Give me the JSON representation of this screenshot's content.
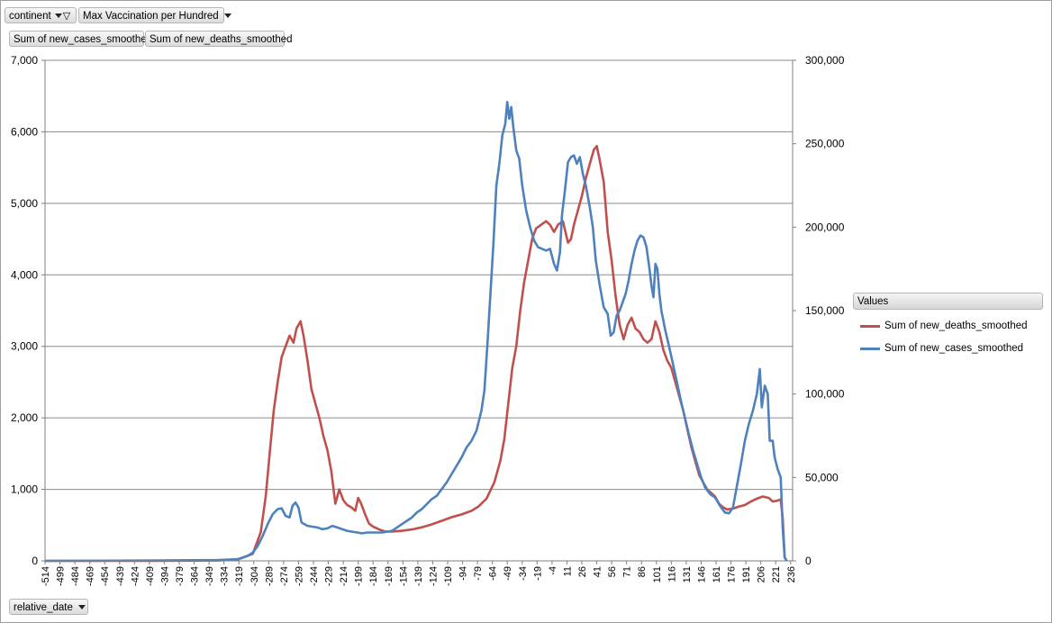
{
  "filters": {
    "continent_label": "continent",
    "vacc_label": "Max Vaccination per Hundred"
  },
  "value_fields": {
    "cases": "Sum of new_cases_smoothed",
    "deaths": "Sum of new_deaths_smoothed"
  },
  "axis_field": {
    "label": "relative_date"
  },
  "legend": {
    "title": "Values",
    "items": [
      {
        "label": "Sum of new_deaths_smoothed",
        "color": "#c0504d"
      },
      {
        "label": "Sum of new_cases_smoothed",
        "color": "#4f81bd"
      }
    ]
  },
  "chart_data": {
    "type": "line",
    "title": "",
    "xlabel": "relative_date",
    "ylabel_left": "",
    "ylabel_right": "",
    "xlim": [
      -514,
      238
    ],
    "ylim_left": [
      0,
      7000
    ],
    "ylim_right": [
      0,
      300000
    ],
    "y_ticks_left": [
      "0",
      "1,000",
      "2,000",
      "3,000",
      "4,000",
      "5,000",
      "6,000",
      "7,000"
    ],
    "y_ticks_right": [
      "0",
      "50,000",
      "100,000",
      "150,000",
      "200,000",
      "250,000",
      "300,000"
    ],
    "x_ticks": [
      "-514",
      "-499",
      "-484",
      "-469",
      "-454",
      "-439",
      "-424",
      "-409",
      "-394",
      "-379",
      "-364",
      "-349",
      "-334",
      "-319",
      "-304",
      "-289",
      "-274",
      "-259",
      "-244",
      "-229",
      "-214",
      "-199",
      "-184",
      "-169",
      "-154",
      "-139",
      "-124",
      "-109",
      "-94",
      "-79",
      "-64",
      "-49",
      "-34",
      "-19",
      "-4",
      "11",
      "26",
      "41",
      "56",
      "71",
      "86",
      "101",
      "116",
      "131",
      "146",
      "161",
      "176",
      "191",
      "206",
      "221",
      "236"
    ],
    "grid": "horizontal",
    "legend_position": "right",
    "series": [
      {
        "name": "Sum of new_deaths_smoothed",
        "axis": "left",
        "color": "#c0504d",
        "points": [
          [
            -514,
            0
          ],
          [
            -400,
            0
          ],
          [
            -340,
            5
          ],
          [
            -320,
            20
          ],
          [
            -305,
            100
          ],
          [
            -297,
            400
          ],
          [
            -292,
            900
          ],
          [
            -288,
            1500
          ],
          [
            -284,
            2100
          ],
          [
            -280,
            2500
          ],
          [
            -276,
            2850
          ],
          [
            -272,
            3000
          ],
          [
            -268,
            3150
          ],
          [
            -264,
            3050
          ],
          [
            -261,
            3250
          ],
          [
            -257,
            3350
          ],
          [
            -254,
            3150
          ],
          [
            -250,
            2800
          ],
          [
            -246,
            2400
          ],
          [
            -242,
            2200
          ],
          [
            -238,
            2000
          ],
          [
            -234,
            1750
          ],
          [
            -230,
            1550
          ],
          [
            -226,
            1250
          ],
          [
            -222,
            800
          ],
          [
            -218,
            1000
          ],
          [
            -214,
            850
          ],
          [
            -210,
            780
          ],
          [
            -206,
            750
          ],
          [
            -202,
            700
          ],
          [
            -199,
            880
          ],
          [
            -196,
            800
          ],
          [
            -192,
            650
          ],
          [
            -188,
            520
          ],
          [
            -184,
            480
          ],
          [
            -178,
            440
          ],
          [
            -172,
            410
          ],
          [
            -165,
            410
          ],
          [
            -155,
            420
          ],
          [
            -145,
            440
          ],
          [
            -135,
            470
          ],
          [
            -125,
            510
          ],
          [
            -115,
            560
          ],
          [
            -105,
            610
          ],
          [
            -95,
            650
          ],
          [
            -85,
            700
          ],
          [
            -78,
            760
          ],
          [
            -70,
            870
          ],
          [
            -62,
            1100
          ],
          [
            -56,
            1400
          ],
          [
            -52,
            1700
          ],
          [
            -48,
            2200
          ],
          [
            -44,
            2700
          ],
          [
            -40,
            3000
          ],
          [
            -36,
            3500
          ],
          [
            -32,
            3900
          ],
          [
            -28,
            4200
          ],
          [
            -24,
            4500
          ],
          [
            -20,
            4650
          ],
          [
            -15,
            4700
          ],
          [
            -10,
            4750
          ],
          [
            -6,
            4700
          ],
          [
            -2,
            4600
          ],
          [
            2,
            4700
          ],
          [
            7,
            4750
          ],
          [
            12,
            4450
          ],
          [
            15,
            4500
          ],
          [
            18,
            4700
          ],
          [
            22,
            4900
          ],
          [
            26,
            5100
          ],
          [
            30,
            5350
          ],
          [
            34,
            5550
          ],
          [
            38,
            5750
          ],
          [
            41,
            5800
          ],
          [
            44,
            5600
          ],
          [
            48,
            5300
          ],
          [
            52,
            4600
          ],
          [
            56,
            4200
          ],
          [
            60,
            3700
          ],
          [
            64,
            3300
          ],
          [
            68,
            3100
          ],
          [
            72,
            3300
          ],
          [
            76,
            3400
          ],
          [
            80,
            3250
          ],
          [
            84,
            3200
          ],
          [
            88,
            3100
          ],
          [
            92,
            3050
          ],
          [
            96,
            3100
          ],
          [
            100,
            3350
          ],
          [
            104,
            3200
          ],
          [
            108,
            2950
          ],
          [
            112,
            2800
          ],
          [
            116,
            2700
          ],
          [
            120,
            2500
          ],
          [
            124,
            2300
          ],
          [
            128,
            2100
          ],
          [
            132,
            1850
          ],
          [
            136,
            1600
          ],
          [
            140,
            1400
          ],
          [
            144,
            1200
          ],
          [
            148,
            1100
          ],
          [
            152,
            1000
          ],
          [
            156,
            950
          ],
          [
            160,
            900
          ],
          [
            164,
            800
          ],
          [
            168,
            750
          ],
          [
            172,
            720
          ],
          [
            178,
            730
          ],
          [
            184,
            760
          ],
          [
            190,
            780
          ],
          [
            196,
            830
          ],
          [
            202,
            870
          ],
          [
            208,
            900
          ],
          [
            214,
            880
          ],
          [
            218,
            830
          ],
          [
            222,
            840
          ],
          [
            226,
            860
          ],
          [
            228,
            600
          ],
          [
            230,
            50
          ],
          [
            232,
            0
          ]
        ]
      },
      {
        "name": "Sum of new_cases_smoothed",
        "axis": "right",
        "color": "#4f81bd",
        "points": [
          [
            -514,
            0
          ],
          [
            -400,
            200
          ],
          [
            -340,
            500
          ],
          [
            -320,
            1000
          ],
          [
            -310,
            3000
          ],
          [
            -305,
            5000
          ],
          [
            -300,
            9000
          ],
          [
            -295,
            15000
          ],
          [
            -290,
            22000
          ],
          [
            -285,
            28000
          ],
          [
            -280,
            31000
          ],
          [
            -276,
            31500
          ],
          [
            -272,
            27000
          ],
          [
            -268,
            26000
          ],
          [
            -265,
            33000
          ],
          [
            -262,
            35000
          ],
          [
            -259,
            32000
          ],
          [
            -256,
            23000
          ],
          [
            -250,
            21000
          ],
          [
            -245,
            20500
          ],
          [
            -240,
            20000
          ],
          [
            -235,
            19000
          ],
          [
            -230,
            19500
          ],
          [
            -225,
            21000
          ],
          [
            -220,
            20000
          ],
          [
            -215,
            19000
          ],
          [
            -210,
            18000
          ],
          [
            -205,
            17500
          ],
          [
            -200,
            17000
          ],
          [
            -195,
            16500
          ],
          [
            -190,
            17000
          ],
          [
            -185,
            17000
          ],
          [
            -180,
            17000
          ],
          [
            -175,
            17000
          ],
          [
            -170,
            17500
          ],
          [
            -165,
            18000
          ],
          [
            -160,
            20000
          ],
          [
            -155,
            22000
          ],
          [
            -150,
            24000
          ],
          [
            -145,
            26000
          ],
          [
            -140,
            29000
          ],
          [
            -135,
            31000
          ],
          [
            -130,
            34000
          ],
          [
            -125,
            37000
          ],
          [
            -120,
            39000
          ],
          [
            -115,
            43000
          ],
          [
            -110,
            47000
          ],
          [
            -105,
            52000
          ],
          [
            -100,
            57000
          ],
          [
            -95,
            62000
          ],
          [
            -90,
            68000
          ],
          [
            -85,
            72000
          ],
          [
            -80,
            78000
          ],
          [
            -75,
            90000
          ],
          [
            -72,
            102000
          ],
          [
            -69,
            130000
          ],
          [
            -66,
            160000
          ],
          [
            -63,
            190000
          ],
          [
            -60,
            225000
          ],
          [
            -57,
            238000
          ],
          [
            -54,
            255000
          ],
          [
            -51,
            262000
          ],
          [
            -49,
            275000
          ],
          [
            -47,
            265000
          ],
          [
            -45,
            272000
          ],
          [
            -43,
            260000
          ],
          [
            -40,
            246000
          ],
          [
            -37,
            241000
          ],
          [
            -34,
            225000
          ],
          [
            -30,
            210000
          ],
          [
            -26,
            200000
          ],
          [
            -22,
            192000
          ],
          [
            -18,
            188000
          ],
          [
            -14,
            187000
          ],
          [
            -10,
            186000
          ],
          [
            -6,
            187000
          ],
          [
            -2,
            178000
          ],
          [
            1,
            174000
          ],
          [
            4,
            185000
          ],
          [
            6,
            207000
          ],
          [
            9,
            222000
          ],
          [
            12,
            239000
          ],
          [
            15,
            242000
          ],
          [
            18,
            243000
          ],
          [
            21,
            238000
          ],
          [
            24,
            242000
          ],
          [
            27,
            232000
          ],
          [
            30,
            225000
          ],
          [
            34,
            212000
          ],
          [
            37,
            200000
          ],
          [
            40,
            180000
          ],
          [
            44,
            165000
          ],
          [
            48,
            152000
          ],
          [
            52,
            148000
          ],
          [
            55,
            135000
          ],
          [
            58,
            137000
          ],
          [
            61,
            147000
          ],
          [
            64,
            150000
          ],
          [
            67,
            155000
          ],
          [
            70,
            160000
          ],
          [
            73,
            168000
          ],
          [
            76,
            178000
          ],
          [
            79,
            186000
          ],
          [
            82,
            192000
          ],
          [
            85,
            195000
          ],
          [
            88,
            194000
          ],
          [
            91,
            188000
          ],
          [
            94,
            175000
          ],
          [
            96,
            165000
          ],
          [
            98,
            158000
          ],
          [
            100,
            178000
          ],
          [
            102,
            175000
          ],
          [
            104,
            160000
          ],
          [
            106,
            150000
          ],
          [
            110,
            138000
          ],
          [
            114,
            128000
          ],
          [
            118,
            117000
          ],
          [
            122,
            106000
          ],
          [
            126,
            95000
          ],
          [
            130,
            85000
          ],
          [
            134,
            75000
          ],
          [
            138,
            66000
          ],
          [
            142,
            58000
          ],
          [
            146,
            50000
          ],
          [
            150,
            44000
          ],
          [
            155,
            40000
          ],
          [
            160,
            38000
          ],
          [
            165,
            33000
          ],
          [
            170,
            29000
          ],
          [
            174,
            28500
          ],
          [
            178,
            32000
          ],
          [
            182,
            45000
          ],
          [
            186,
            58000
          ],
          [
            190,
            72000
          ],
          [
            194,
            82000
          ],
          [
            198,
            90000
          ],
          [
            202,
            100000
          ],
          [
            205,
            115000
          ],
          [
            207,
            92000
          ],
          [
            210,
            105000
          ],
          [
            213,
            100000
          ],
          [
            215,
            72000
          ],
          [
            218,
            72000
          ],
          [
            220,
            62000
          ],
          [
            223,
            55000
          ],
          [
            226,
            50000
          ],
          [
            228,
            20000
          ],
          [
            230,
            2000
          ],
          [
            232,
            0
          ]
        ]
      }
    ]
  }
}
